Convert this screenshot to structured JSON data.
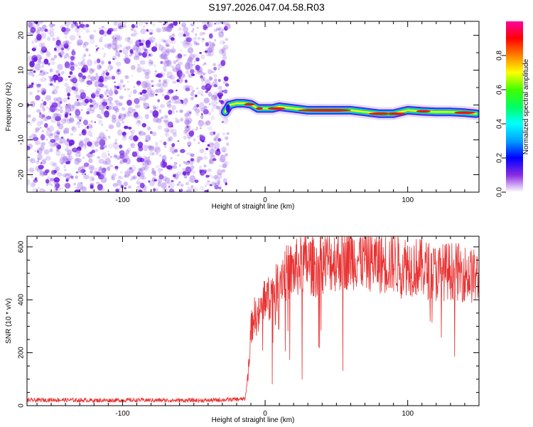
{
  "title": "S197.2026.047.04.58.R03",
  "colors": {
    "snr_line": "#e83232",
    "noise_dots": "#a070e8",
    "noise_dots_dark": "#6a14e0",
    "axis": "#000000"
  },
  "chart_data": [
    {
      "type": "heatmap",
      "title": "S197.2026.047.04.58.R03",
      "xlabel": "Height of straight line (km)",
      "ylabel": "Frequency (Hz)",
      "xlim": [
        -167,
        150
      ],
      "ylim": [
        -25,
        24
      ],
      "x_ticks": [
        -100,
        0,
        100
      ],
      "x_tick_labels": [
        "-100",
        "0",
        "100"
      ],
      "y_ticks": [
        -20,
        -10,
        0,
        10,
        20
      ],
      "y_tick_labels": [
        "-20",
        "-10",
        "0",
        "10",
        "20"
      ],
      "colorbar": {
        "label": "Normalized spectral amplitude",
        "range": [
          0,
          1
        ],
        "ticks": [
          0,
          0.2,
          0.4,
          0.6,
          0.8
        ],
        "tick_labels": [
          "0.0",
          "0.2",
          "0.4",
          "0.6",
          "0.8"
        ]
      },
      "noise_region": {
        "x_range": [
          -167,
          -26
        ],
        "amplitude_range": [
          0.0,
          0.2
        ]
      },
      "signal_track": {
        "x": [
          -28,
          -25,
          -20,
          -15,
          -10,
          -5,
          0,
          5,
          10,
          20,
          30,
          40,
          50,
          60,
          70,
          80,
          90,
          95,
          100,
          110,
          120,
          130,
          140,
          148
        ],
        "frequency": [
          -2,
          0,
          0.5,
          0.5,
          0.2,
          -1,
          -1,
          -1,
          -0.5,
          -1,
          -1.5,
          -1.5,
          -1.5,
          -1.5,
          -2,
          -2.5,
          -2.5,
          -2,
          -1.5,
          -1.8,
          -2,
          -2,
          -2.2,
          -2.5
        ]
      }
    },
    {
      "type": "line",
      "xlabel": "Height of straight line (km)",
      "ylabel": "SNR (10 * v/v)",
      "xlim": [
        -167,
        150
      ],
      "ylim": [
        0,
        640
      ],
      "x_ticks": [
        -100,
        0,
        100
      ],
      "x_tick_labels": [
        "-100",
        "0",
        "100"
      ],
      "y_ticks": [
        0,
        200,
        400,
        600
      ],
      "y_tick_labels": [
        "0",
        "200",
        "400",
        "600"
      ],
      "series": [
        {
          "name": "SNR",
          "x": [
            -167,
            -150,
            -120,
            -90,
            -60,
            -40,
            -30,
            -14,
            -12,
            -10,
            -8,
            -5,
            -2,
            0,
            2,
            5,
            8,
            10,
            12,
            15,
            20,
            25,
            30,
            35,
            40,
            50,
            60,
            70,
            80,
            90,
            100,
            110,
            120,
            130,
            140,
            150
          ],
          "values": [
            20,
            22,
            20,
            21,
            20,
            20,
            22,
            25,
            120,
            280,
            340,
            330,
            380,
            420,
            400,
            430,
            440,
            480,
            500,
            500,
            510,
            530,
            540,
            520,
            540,
            550,
            560,
            555,
            540,
            540,
            530,
            520,
            500,
            510,
            500,
            480
          ]
        }
      ]
    }
  ]
}
